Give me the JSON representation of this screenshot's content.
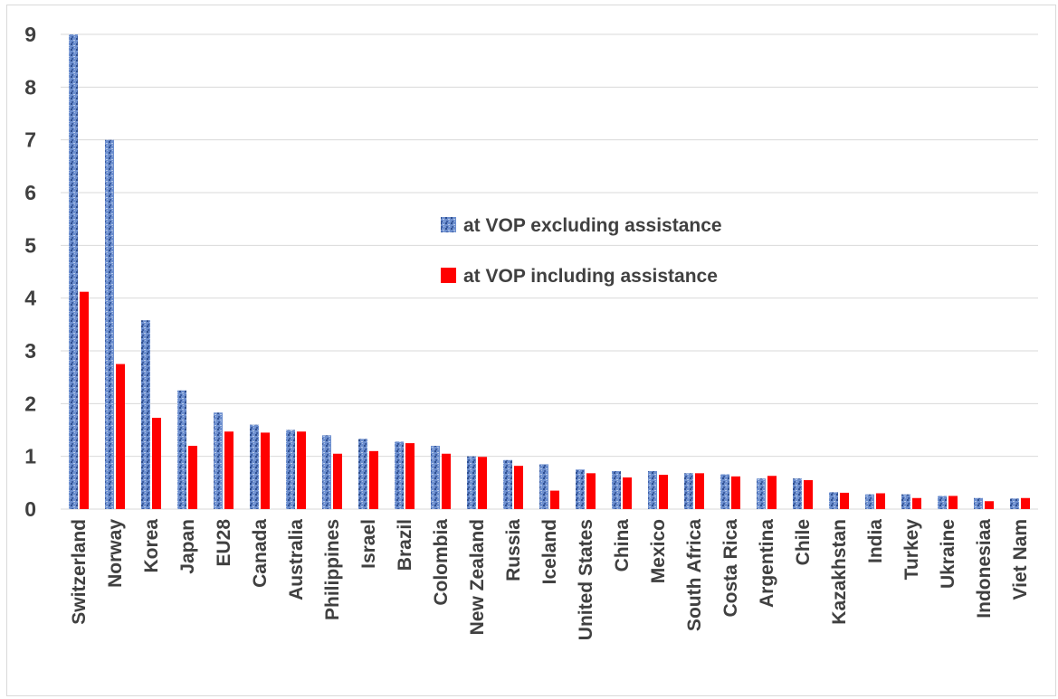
{
  "chart_data": {
    "type": "bar",
    "title": "",
    "xlabel": "",
    "ylabel": "",
    "ylim": [
      0,
      9
    ],
    "yticks": [
      0,
      1,
      2,
      3,
      4,
      5,
      6,
      7,
      8,
      9
    ],
    "grid": true,
    "legend_position": "center-right",
    "categories": [
      "Switzerland",
      "Norway",
      "Korea",
      "Japan",
      "EU28",
      "Canada",
      "Australia",
      "Philippines",
      "Israel",
      "Brazil",
      "Colombia",
      "New Zealand",
      "Russia",
      "Iceland",
      "United States",
      "China",
      "Mexico",
      "South Africa",
      "Costa Rica",
      "Argentina",
      "Chile",
      "Kazakhstan",
      "India",
      "Turkey",
      "Ukraine",
      "Indonesiaa",
      "Viet Nam"
    ],
    "series": [
      {
        "name": "at VOP excluding assistance",
        "color": "#5b7fc0",
        "values": [
          9.0,
          7.0,
          3.58,
          2.25,
          1.83,
          1.6,
          1.5,
          1.4,
          1.33,
          1.28,
          1.2,
          1.0,
          0.93,
          0.85,
          0.75,
          0.72,
          0.72,
          0.68,
          0.66,
          0.58,
          0.58,
          0.32,
          0.28,
          0.28,
          0.25,
          0.21,
          0.2
        ]
      },
      {
        "name": "at VOP including assistance",
        "color": "#ff0000",
        "values": [
          4.12,
          2.75,
          1.73,
          1.2,
          1.47,
          1.45,
          1.47,
          1.05,
          1.1,
          1.25,
          1.05,
          0.99,
          0.82,
          0.35,
          0.68,
          0.6,
          0.65,
          0.68,
          0.62,
          0.63,
          0.55,
          0.31,
          0.3,
          0.21,
          0.25,
          0.15,
          0.21
        ]
      }
    ]
  }
}
